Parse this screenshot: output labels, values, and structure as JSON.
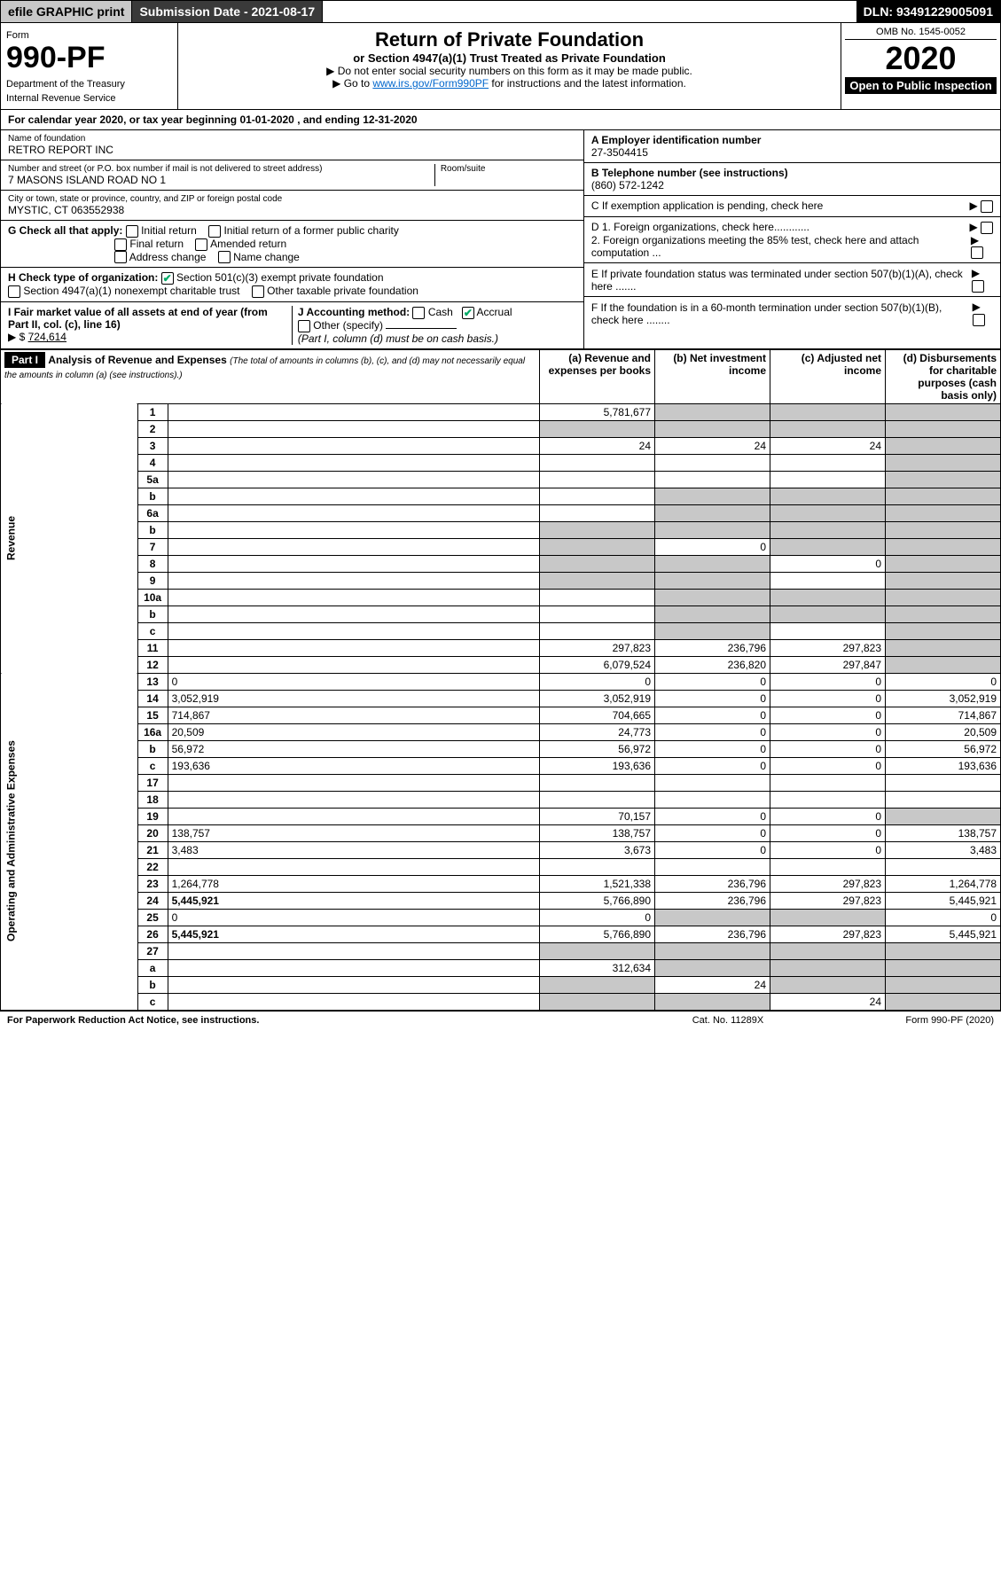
{
  "topbar": {
    "efile": "efile GRAPHIC print",
    "submission_label": "Submission Date - 2021-08-17",
    "dln": "DLN: 93491229005091"
  },
  "header": {
    "form_label": "Form",
    "form_number": "990-PF",
    "dept1": "Department of the Treasury",
    "dept2": "Internal Revenue Service",
    "title": "Return of Private Foundation",
    "subtitle": "or Section 4947(a)(1) Trust Treated as Private Foundation",
    "note1": "Do not enter social security numbers on this form as it may be made public.",
    "note2_pre": "Go to ",
    "note2_link": "www.irs.gov/Form990PF",
    "note2_post": " for instructions and the latest information.",
    "omb": "OMB No. 1545-0052",
    "year": "2020",
    "inspection": "Open to Public Inspection"
  },
  "calendar": {
    "prefix": "For calendar year 2020, or tax year beginning ",
    "begin": "01-01-2020",
    "mid": " , and ending ",
    "end": "12-31-2020"
  },
  "entity": {
    "name_label": "Name of foundation",
    "name": "RETRO REPORT INC",
    "addr_label": "Number and street (or P.O. box number if mail is not delivered to street address)",
    "addr": "7 MASONS ISLAND ROAD NO 1",
    "room_label": "Room/suite",
    "city_label": "City or town, state or province, country, and ZIP or foreign postal code",
    "city": "MYSTIC, CT  063552938",
    "ein_label": "A Employer identification number",
    "ein": "27-3504415",
    "phone_label": "B Telephone number (see instructions)",
    "phone": "(860) 572-1242",
    "c_label": "C If exemption application is pending, check here",
    "d1_label": "D 1. Foreign organizations, check here............",
    "d2_label": "2. Foreign organizations meeting the 85% test, check here and attach computation ...",
    "e_label": "E If private foundation status was terminated under section 507(b)(1)(A), check here .......",
    "f_label": "F If the foundation is in a 60-month termination under section 507(b)(1)(B), check here ........"
  },
  "boxG": {
    "label": "G Check all that apply:",
    "opts": [
      "Initial return",
      "Final return",
      "Address change",
      "Initial return of a former public charity",
      "Amended return",
      "Name change"
    ]
  },
  "boxH": {
    "label": "H Check type of organization:",
    "opt1": "Section 501(c)(3) exempt private foundation",
    "opt2": "Section 4947(a)(1) nonexempt charitable trust",
    "opt3": "Other taxable private foundation"
  },
  "boxI": {
    "label": "I Fair market value of all assets at end of year (from Part II, col. (c), line 16)",
    "arrow": "▶ $",
    "value": "724,614"
  },
  "boxJ": {
    "label": "J Accounting method:",
    "cash": "Cash",
    "accrual": "Accrual",
    "other": "Other (specify)",
    "note": "(Part I, column (d) must be on cash basis.)"
  },
  "part1": {
    "tag": "Part I",
    "heading": "Analysis of Revenue and Expenses",
    "note": "(The total of amounts in columns (b), (c), and (d) may not necessarily equal the amounts in column (a) (see instructions).)",
    "col_a": "(a) Revenue and expenses per books",
    "col_b": "(b) Net investment income",
    "col_c": "(c) Adjusted net income",
    "col_d": "(d) Disbursements for charitable purposes (cash basis only)",
    "side_rev": "Revenue",
    "side_exp": "Operating and Administrative Expenses"
  },
  "rows": {
    "1": {
      "n": "1",
      "d": "",
      "a": "5,781,677",
      "b": "",
      "c": "",
      "shade": [
        "b",
        "c",
        "d"
      ]
    },
    "2": {
      "n": "2",
      "d": "",
      "a": "",
      "b": "",
      "c": "",
      "shade": [
        "a",
        "b",
        "c",
        "d"
      ]
    },
    "3": {
      "n": "3",
      "d": "",
      "a": "24",
      "b": "24",
      "c": "24",
      "shade": [
        "d"
      ]
    },
    "4": {
      "n": "4",
      "d": "",
      "a": "",
      "b": "",
      "c": "",
      "shade": [
        "d"
      ]
    },
    "5a": {
      "n": "5a",
      "d": "",
      "a": "",
      "b": "",
      "c": "",
      "shade": [
        "d"
      ]
    },
    "5b": {
      "n": "b",
      "d": "",
      "a": "",
      "b": "",
      "c": "",
      "shade": [
        "b",
        "c",
        "d"
      ]
    },
    "6a": {
      "n": "6a",
      "d": "",
      "a": "",
      "b": "",
      "c": "",
      "shade": [
        "b",
        "c",
        "d"
      ]
    },
    "6b": {
      "n": "b",
      "d": "",
      "a": "",
      "b": "",
      "c": "",
      "shade": [
        "a",
        "b",
        "c",
        "d"
      ]
    },
    "7": {
      "n": "7",
      "d": "",
      "a": "",
      "b": "0",
      "c": "",
      "shade": [
        "a",
        "c",
        "d"
      ]
    },
    "8": {
      "n": "8",
      "d": "",
      "a": "",
      "b": "",
      "c": "0",
      "shade": [
        "a",
        "b",
        "d"
      ]
    },
    "9": {
      "n": "9",
      "d": "",
      "a": "",
      "b": "",
      "c": "",
      "shade": [
        "a",
        "b",
        "d"
      ]
    },
    "10a": {
      "n": "10a",
      "d": "",
      "a": "",
      "b": "",
      "c": "",
      "shade": [
        "b",
        "c",
        "d"
      ]
    },
    "10b": {
      "n": "b",
      "d": "",
      "a": "",
      "b": "",
      "c": "",
      "shade": [
        "b",
        "c",
        "d"
      ]
    },
    "10c": {
      "n": "c",
      "d": "",
      "a": "",
      "b": "",
      "c": "",
      "shade": [
        "b",
        "d"
      ]
    },
    "11": {
      "n": "11",
      "d": "",
      "a": "297,823",
      "b": "236,796",
      "c": "297,823",
      "shade": [
        "d"
      ]
    },
    "12": {
      "n": "12",
      "d": "",
      "a": "6,079,524",
      "b": "236,820",
      "c": "297,847",
      "shade": [
        "d"
      ],
      "bold": true
    },
    "13": {
      "n": "13",
      "d": "0",
      "a": "0",
      "b": "0",
      "c": "0"
    },
    "14": {
      "n": "14",
      "d": "3,052,919",
      "a": "3,052,919",
      "b": "0",
      "c": "0"
    },
    "15": {
      "n": "15",
      "d": "714,867",
      "a": "704,665",
      "b": "0",
      "c": "0"
    },
    "16a": {
      "n": "16a",
      "d": "20,509",
      "a": "24,773",
      "b": "0",
      "c": "0"
    },
    "16b": {
      "n": "b",
      "d": "56,972",
      "a": "56,972",
      "b": "0",
      "c": "0"
    },
    "16c": {
      "n": "c",
      "d": "193,636",
      "a": "193,636",
      "b": "0",
      "c": "0"
    },
    "17": {
      "n": "17",
      "d": "",
      "a": "",
      "b": "",
      "c": ""
    },
    "18": {
      "n": "18",
      "d": "",
      "a": "",
      "b": "",
      "c": ""
    },
    "19": {
      "n": "19",
      "d": "",
      "a": "70,157",
      "b": "0",
      "c": "0",
      "shade": [
        "d"
      ]
    },
    "20": {
      "n": "20",
      "d": "138,757",
      "a": "138,757",
      "b": "0",
      "c": "0"
    },
    "21": {
      "n": "21",
      "d": "3,483",
      "a": "3,673",
      "b": "0",
      "c": "0"
    },
    "22": {
      "n": "22",
      "d": "",
      "a": "",
      "b": "",
      "c": ""
    },
    "23": {
      "n": "23",
      "d": "1,264,778",
      "a": "1,521,338",
      "b": "236,796",
      "c": "297,823"
    },
    "24": {
      "n": "24",
      "d": "5,445,921",
      "a": "5,766,890",
      "b": "236,796",
      "c": "297,823",
      "bold": true
    },
    "25": {
      "n": "25",
      "d": "0",
      "a": "0",
      "b": "",
      "c": "",
      "shade": [
        "b",
        "c"
      ]
    },
    "26": {
      "n": "26",
      "d": "5,445,921",
      "a": "5,766,890",
      "b": "236,796",
      "c": "297,823",
      "bold": true
    },
    "27": {
      "n": "27",
      "d": "",
      "a": "",
      "b": "",
      "c": "",
      "shade": [
        "a",
        "b",
        "c",
        "d"
      ]
    },
    "27a": {
      "n": "a",
      "d": "",
      "a": "312,634",
      "b": "",
      "c": "",
      "shade": [
        "b",
        "c",
        "d"
      ],
      "bold": true
    },
    "27b": {
      "n": "b",
      "d": "",
      "a": "",
      "b": "24",
      "c": "",
      "shade": [
        "a",
        "c",
        "d"
      ],
      "bold": true
    },
    "27c": {
      "n": "c",
      "d": "",
      "a": "",
      "b": "",
      "c": "24",
      "shade": [
        "a",
        "b",
        "d"
      ],
      "bold": true
    }
  },
  "footer": {
    "left": "For Paperwork Reduction Act Notice, see instructions.",
    "mid": "Cat. No. 11289X",
    "right": "Form 990-PF (2020)"
  }
}
